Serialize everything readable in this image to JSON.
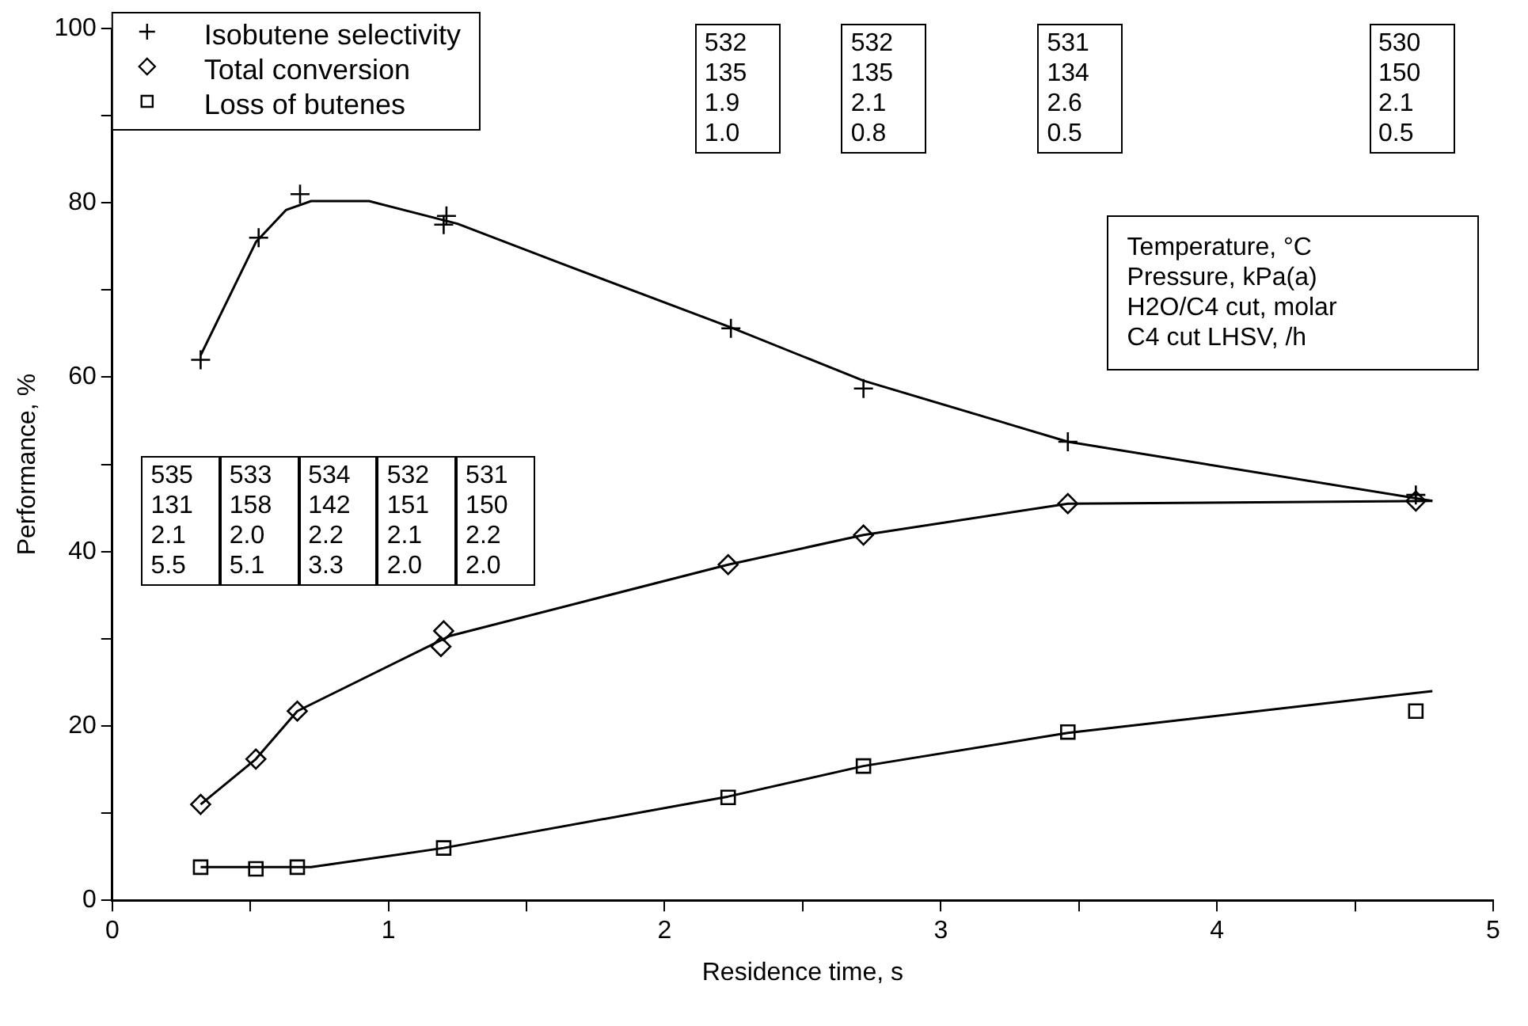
{
  "chart_data": {
    "type": "scatter",
    "xlabel": "Residence time, s",
    "ylabel": "Performance, %",
    "xlim": [
      0,
      5
    ],
    "xticks": [
      0,
      {
        "value": 0.5,
        "label": null
      },
      1,
      {
        "value": 1.5,
        "label": null
      },
      2,
      {
        "value": 2.5,
        "label": null
      },
      3,
      {
        "value": 3.5,
        "label": null
      },
      4,
      {
        "value": 4.5,
        "label": null
      },
      5
    ],
    "ylim": [
      0,
      100
    ],
    "yticks": [
      0,
      {
        "value": 10,
        "label": null
      },
      20,
      {
        "value": 30,
        "label": null
      },
      40,
      {
        "value": 50,
        "label": null
      },
      60,
      {
        "value": 70,
        "label": null
      },
      80,
      {
        "value": 90,
        "label": null
      },
      100
    ],
    "grid": false,
    "legend": "top left",
    "series": [
      {
        "name": "Isobutene selectivity",
        "type": "scatter",
        "marker": "cross",
        "color": "#000000",
        "x": [
          0.32,
          0.53,
          0.68,
          1.2,
          1.21,
          2.24,
          2.72,
          3.46,
          4.72
        ],
        "values": [
          62,
          76,
          81,
          77.5,
          78.5,
          65.6,
          58.7,
          52.6,
          46.5
        ]
      },
      {
        "name": "Total conversion",
        "type": "scatter",
        "marker": "diamond",
        "color": "#000000",
        "x": [
          0.32,
          0.52,
          0.67,
          1.19,
          1.2,
          2.23,
          2.72,
          3.46,
          4.72
        ],
        "values": [
          11,
          16.2,
          21.7,
          29.1,
          30.9,
          38.5,
          41.9,
          45.5,
          45.8
        ]
      },
      {
        "name": "Loss of butenes",
        "type": "scatter",
        "marker": "square",
        "color": "#000000",
        "x": [
          0.32,
          0.52,
          0.67,
          1.2,
          2.23,
          2.72,
          3.46,
          4.72
        ],
        "values": [
          3.8,
          3.6,
          3.8,
          6,
          11.8,
          15.4,
          19.3,
          21.7
        ]
      },
      {
        "type": "line",
        "marker": "none",
        "line_style": "solid",
        "color": "#000000",
        "x": [
          0.32,
          0.52,
          0.63,
          0.72,
          0.93,
          1.25,
          1.63,
          2.24,
          2.72,
          3.46,
          4.78
        ],
        "values": [
          62.5,
          75.5,
          79.2,
          80.2,
          80.2,
          77.6,
          73,
          65.7,
          59.6,
          52.6,
          45.8
        ]
      },
      {
        "type": "line",
        "marker": "none",
        "line_style": "solid",
        "color": "#000000",
        "x": [
          0.32,
          0.52,
          0.67,
          1.22,
          2.23,
          2.72,
          3.46,
          4.78
        ],
        "values": [
          11,
          16.2,
          21.7,
          30.3,
          38.5,
          41.9,
          45.5,
          45.8
        ]
      },
      {
        "type": "line",
        "marker": "none",
        "line_style": "solid",
        "color": "#000000",
        "x": [
          0.32,
          0.72,
          1.2,
          2.23,
          2.72,
          3.46,
          4.78
        ],
        "values": [
          3.8,
          3.8,
          6,
          11.9,
          15.4,
          19.2,
          24
        ]
      }
    ],
    "annotations": [
      "535\n131\n2.1\n5.5",
      "533\n158\n2.0\n5.1",
      "534\n142\n2.2\n3.3",
      "532\n151\n2.1\n2.0",
      "531\n150\n2.2\n2.0",
      "532\n135\n1.9\n1.0",
      "532\n135\n2.1\n0.8",
      "531\n134\n2.6\n0.5",
      "530\n150\n2.1\n0.5",
      "Temperature, °C\nPressure, kPa(a)\nH2O/C4 cut, molar\nC4 cut LHSV, /h"
    ]
  }
}
